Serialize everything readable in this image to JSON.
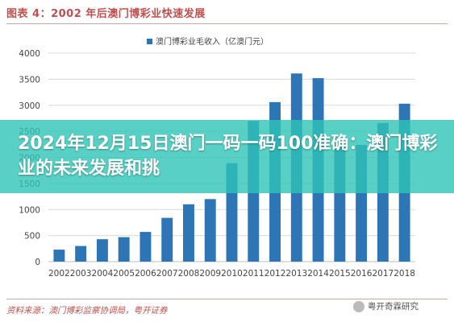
{
  "figure": {
    "label": "图表 4：2002 年后澳门博彩业快速发展",
    "source": "资料来源：澳门博彩监察协调局，粤开证券",
    "watermark": "粤开奇霖研究"
  },
  "overlay": {
    "title": "2024年12月15日澳门一码一码100准确：澳门博彩业的未来发展和挑"
  },
  "colors": {
    "bar": "#2e75b6",
    "grid": "#d9d9d9",
    "overlay": "#2ec4b6",
    "accent": "#c0504d"
  },
  "chart_data": {
    "type": "bar",
    "title": "",
    "xlabel": "",
    "ylabel": "",
    "categories": [
      "2002",
      "2003",
      "2004",
      "2005",
      "2006",
      "2007",
      "2008",
      "2009",
      "2010",
      "2011",
      "2012",
      "2013",
      "2014",
      "2015",
      "2016",
      "2017",
      "2018"
    ],
    "series": [
      {
        "name": "澳门博彩业毛收入（亿澳门元）",
        "values": [
          230,
          300,
          430,
          470,
          570,
          840,
          1100,
          1200,
          1890,
          2700,
          3060,
          3610,
          3520,
          2310,
          2240,
          2660,
          3030
        ]
      }
    ],
    "ylim": [
      0,
      4000
    ],
    "yticks": [
      "0",
      "500",
      "1000",
      "1500",
      "2000",
      "2500",
      "3000",
      "3500",
      "4000"
    ],
    "legend": "top-center",
    "grid": true
  }
}
